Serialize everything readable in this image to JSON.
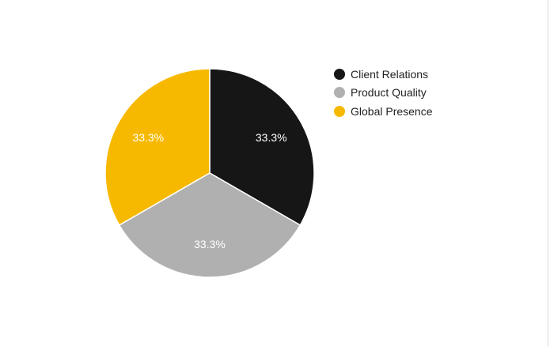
{
  "chart_data": {
    "type": "pie",
    "categories": [
      "Client Relations",
      "Product Quality",
      "Global Presence"
    ],
    "values": [
      33.3,
      33.3,
      33.3
    ],
    "labels": [
      "33.3%",
      "33.3%",
      "33.3%"
    ],
    "colors": [
      "#161616",
      "#b0b0b0",
      "#f7b900"
    ],
    "legend_position": "right",
    "start_angle": "12 o'clock",
    "direction": "clockwise"
  }
}
